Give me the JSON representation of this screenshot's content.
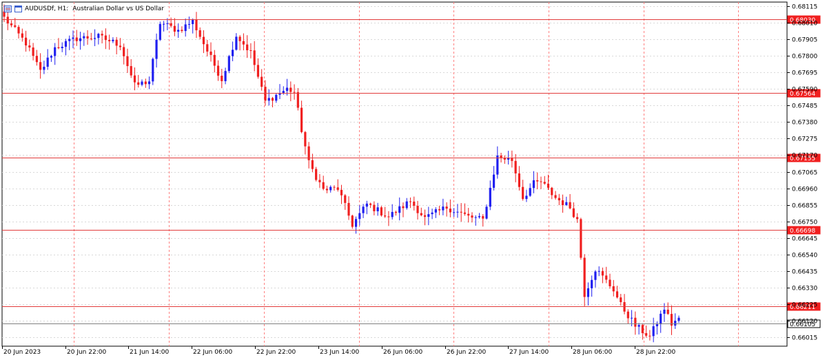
{
  "header": {
    "symbol_label": "AUDUSDf, H1:",
    "description": "Australian Dollar vs US Dollar",
    "menu_icon": "chart-menu-icon",
    "window_icon": "window-icon"
  },
  "colors": {
    "bull": "#1f1ff0",
    "bear": "#f01f1f",
    "level_line": "#e23b3b",
    "level_tag": "#f01f1f",
    "current_tag": "#ffffff",
    "current_line": "#808080",
    "grid": "#d8d8d8",
    "separator": "#ff7f7f"
  },
  "chart_data": {
    "type": "candlestick",
    "symbol": "AUDUSDf",
    "timeframe": "H1",
    "ylim": [
      0.6596,
      0.6814
    ],
    "y_ticks": [
      "0.68115",
      "0.68010",
      "0.67905",
      "0.67800",
      "0.67695",
      "0.67590",
      "0.67485",
      "0.67380",
      "0.67275",
      "0.67170",
      "0.67065",
      "0.66960",
      "0.66855",
      "0.66750",
      "0.66645",
      "0.66540",
      "0.66435",
      "0.66330",
      "0.66225",
      "0.66120",
      "0.66015"
    ],
    "x_labels": [
      "20 Jun 2023",
      "20 Jun 22:00",
      "21 Jun 14:00",
      "22 Jun 06:00",
      "22 Jun 22:00",
      "23 Jun 14:00",
      "26 Jun 06:00",
      "26 Jun 22:00",
      "27 Jun 14:00",
      "28 Jun 06:00",
      "28 Jun 22:00"
    ],
    "day_separators_after_label": [
      "20 Jun 22:00",
      "21 Jun 14:00",
      "22 Jun 06:00",
      "22 Jun 22:00",
      "23 Jun 14:00",
      "26 Jun 06:00",
      "26 Jun 22:00",
      "27 Jun 14:00",
      "28 Jun 06:00",
      "28 Jun 22:00"
    ],
    "levels": [
      {
        "value": 0.6803,
        "label": "0.68030"
      },
      {
        "value": 0.67564,
        "label": "0.67564"
      },
      {
        "value": 0.67155,
        "label": "0.67155"
      },
      {
        "value": 0.66698,
        "label": "0.66698"
      },
      {
        "value": 0.66211,
        "label": "0.66211"
      }
    ],
    "current_price": {
      "value": 0.66105,
      "label": "0.66105"
    },
    "anchors": [
      [
        0,
        0.6804
      ],
      [
        6,
        0.6788
      ],
      [
        10,
        0.677
      ],
      [
        14,
        0.6785
      ],
      [
        20,
        0.6791
      ],
      [
        26,
        0.6792
      ],
      [
        32,
        0.6787
      ],
      [
        36,
        0.6761
      ],
      [
        40,
        0.6764
      ],
      [
        43,
        0.6801
      ],
      [
        48,
        0.6796
      ],
      [
        52,
        0.6802
      ],
      [
        56,
        0.6783
      ],
      [
        60,
        0.6765
      ],
      [
        64,
        0.6793
      ],
      [
        68,
        0.6782
      ],
      [
        72,
        0.6751
      ],
      [
        78,
        0.6759
      ],
      [
        80,
        0.6757
      ],
      [
        82,
        0.6733
      ],
      [
        84,
        0.6712
      ],
      [
        88,
        0.6695
      ],
      [
        92,
        0.6696
      ],
      [
        96,
        0.6673
      ],
      [
        100,
        0.6686
      ],
      [
        106,
        0.6678
      ],
      [
        112,
        0.6688
      ],
      [
        116,
        0.6677
      ],
      [
        122,
        0.6684
      ],
      [
        128,
        0.6678
      ],
      [
        132,
        0.6676
      ],
      [
        136,
        0.6716
      ],
      [
        140,
        0.6714
      ],
      [
        143,
        0.669
      ],
      [
        146,
        0.6699
      ],
      [
        148,
        0.67
      ],
      [
        152,
        0.669
      ],
      [
        156,
        0.6684
      ],
      [
        158,
        0.6676
      ],
      [
        160,
        0.6629
      ],
      [
        163,
        0.6645
      ],
      [
        168,
        0.6632
      ],
      [
        170,
        0.6622
      ],
      [
        174,
        0.6609
      ],
      [
        178,
        0.6602
      ],
      [
        182,
        0.662
      ],
      [
        184,
        0.661
      ],
      [
        186,
        0.6614
      ]
    ],
    "candle_count": 187,
    "bull_color_name": "blue",
    "bear_color_name": "red"
  }
}
